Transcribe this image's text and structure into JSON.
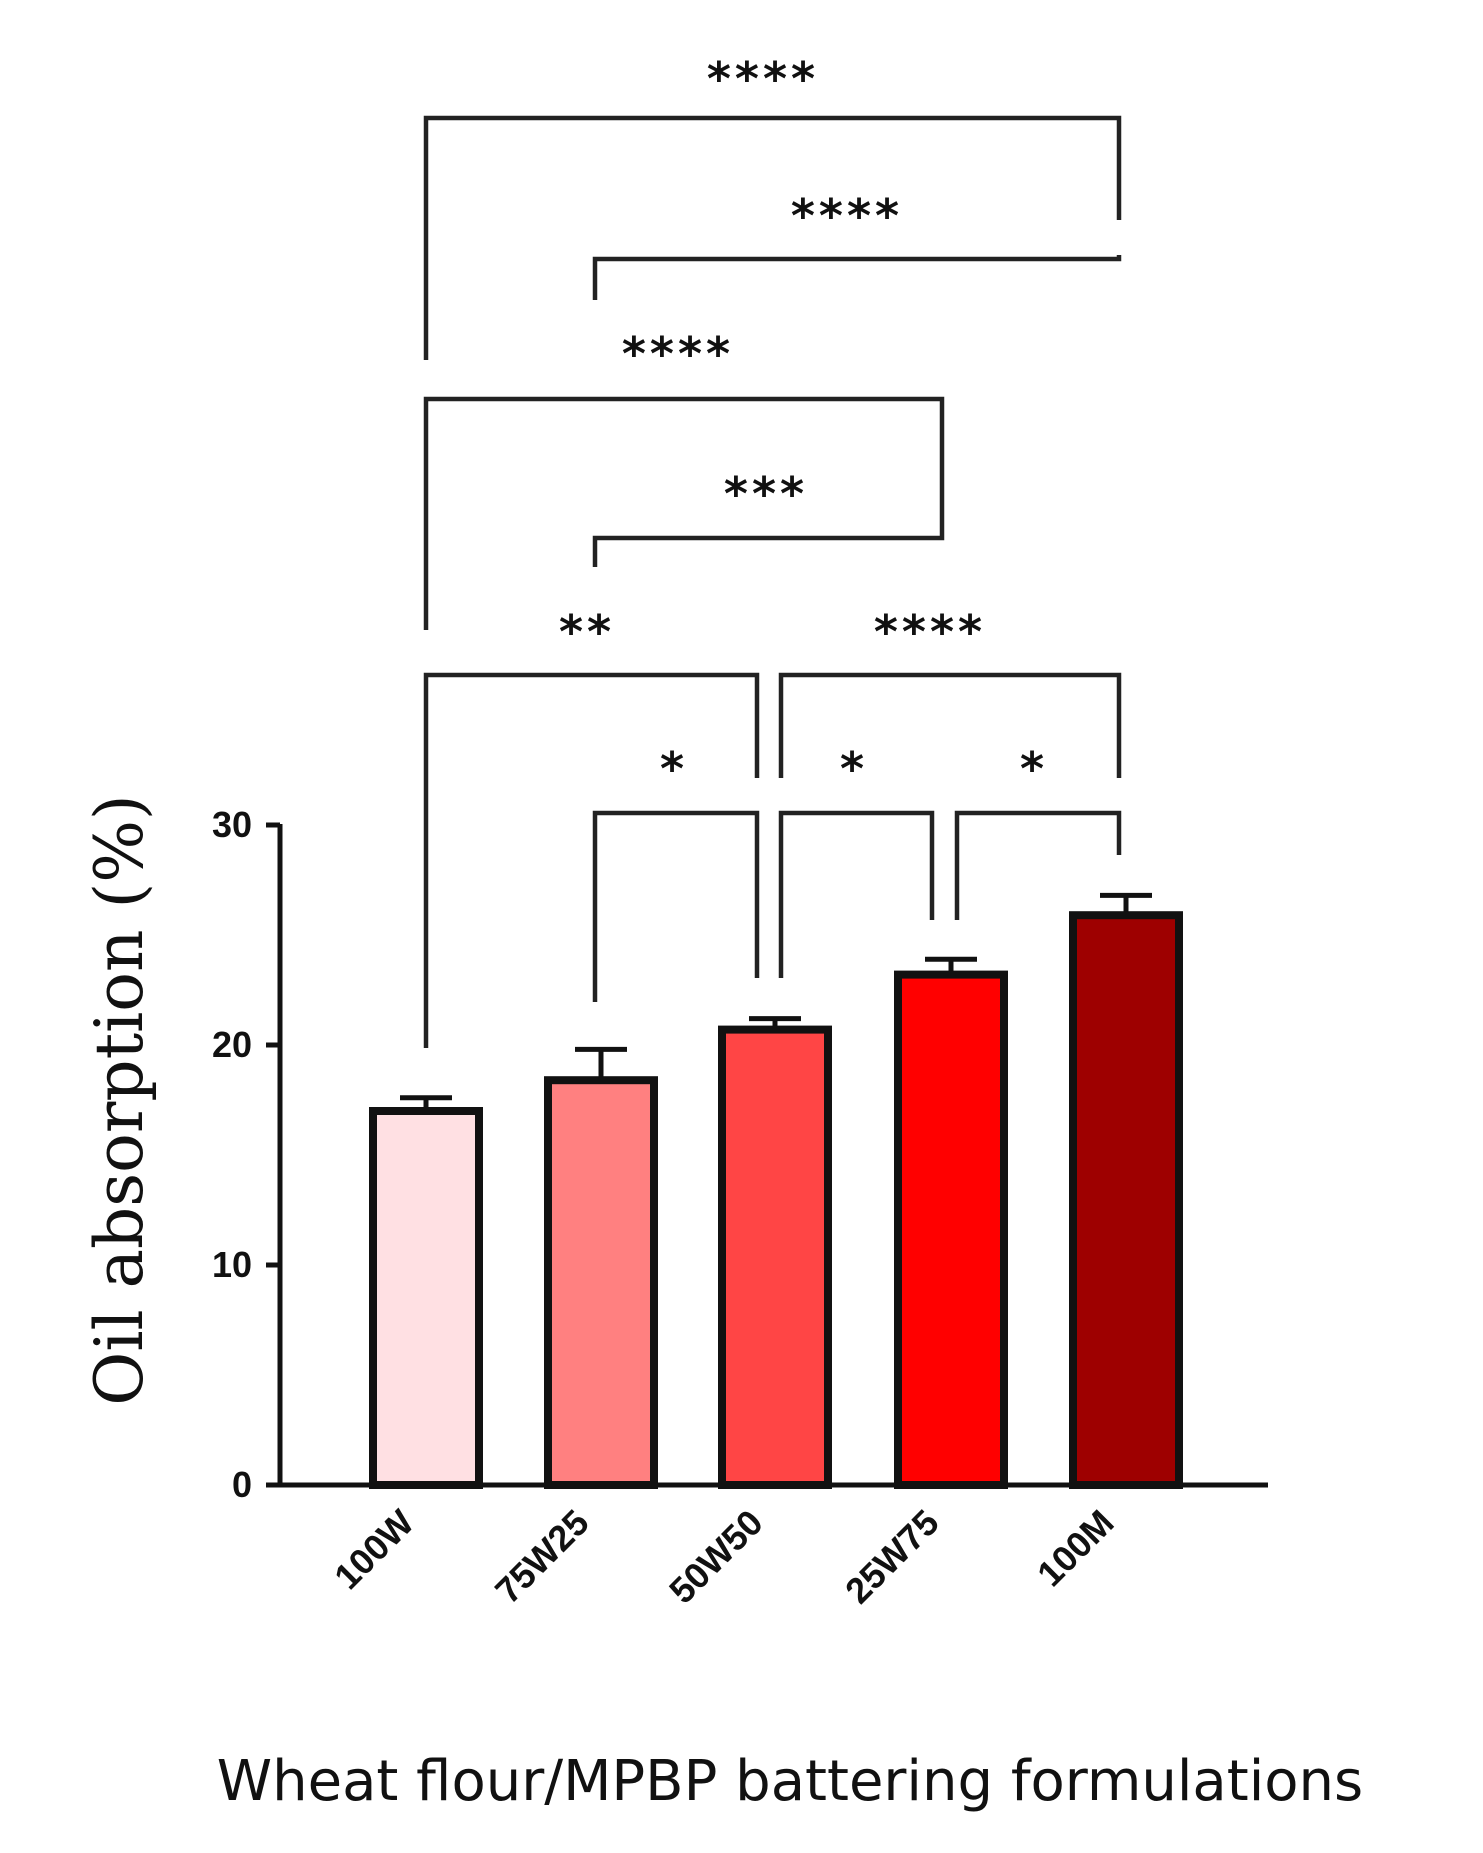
{
  "chart_data": {
    "type": "bar",
    "categories": [
      "100W",
      "75W25",
      "50W50",
      "25W75",
      "100M"
    ],
    "values": [
      17.0,
      18.4,
      20.7,
      23.2,
      25.9
    ],
    "errors": [
      0.6,
      1.4,
      0.5,
      0.7,
      0.9
    ],
    "colors": [
      "#FFE0E3",
      "#FF8080",
      "#FF4545",
      "#FF0000",
      "#9E0000"
    ],
    "xlabel": "Wheat flour/MPBP battering formulations",
    "ylabel": "Oil absorption (%)",
    "ylim": [
      0,
      30
    ],
    "yticks": [
      0,
      10,
      20,
      30
    ],
    "legend": "none",
    "grid": false,
    "significance": [
      {
        "from": "100W",
        "to": "100M",
        "label": "****"
      },
      {
        "from": "75W25",
        "to": "100M",
        "label": "****"
      },
      {
        "from": "100W",
        "to": "25W75",
        "label": "****"
      },
      {
        "from": "75W25",
        "to": "25W75",
        "label": "***"
      },
      {
        "from": "100W",
        "to": "50W50",
        "label": "**"
      },
      {
        "from": "50W50",
        "to": "100M",
        "label": "****"
      },
      {
        "from": "75W25",
        "to": "50W50",
        "label": "*"
      },
      {
        "from": "50W50",
        "to": "25W75",
        "label": "*"
      },
      {
        "from": "25W75",
        "to": "100M",
        "label": "*"
      }
    ]
  }
}
